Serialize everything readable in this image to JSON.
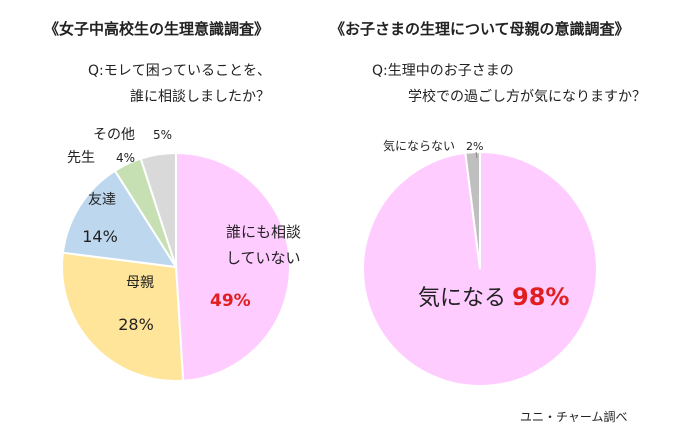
{
  "left_chart": {
    "title": "《女子中高校生の生理意識調査》",
    "question_line1": "Q:モレて困っていることを、",
    "question_line2": "誰に相談しましたか？"
  },
  "right_chart": {
    "title": "《お子さまの生理について母親の意識調査》",
    "question_line1": "Q:生理中のお子さまの",
    "question_line2": "学校での過ごし方が気になりますか？"
  },
  "source": "ユニ・チャーム調べ",
  "chart_data": [
    {
      "type": "pie",
      "title": "《女子中高校生の生理意識調査》",
      "slices": [
        {
          "label": "誰にも相談していない",
          "label_lines": [
            "誰にも相談",
            "していない"
          ],
          "value": 49,
          "value_text": "49%",
          "color": "#ffccff",
          "value_color": "#e02020"
        },
        {
          "label": "母親",
          "label_lines": [
            "母親"
          ],
          "value": 28,
          "value_text": "28%",
          "color": "#ffe599",
          "value_color": "#222222"
        },
        {
          "label": "友達",
          "label_lines": [
            "友達"
          ],
          "value": 14,
          "value_text": "14%",
          "color": "#bdd7ee",
          "value_color": "#222222"
        },
        {
          "label": "先生",
          "label_lines": [
            "先生"
          ],
          "value": 4,
          "value_text": "4%",
          "color": "#c6e0b4",
          "value_color": "#222222"
        },
        {
          "label": "その他",
          "label_lines": [
            "その他"
          ],
          "value": 5,
          "value_text": "5%",
          "color": "#d9d9d9",
          "value_color": "#222222"
        }
      ]
    },
    {
      "type": "pie",
      "title": "《お子さまの生理について母親の意識調査》",
      "slices": [
        {
          "label": "気になる",
          "label_lines": [
            "気になる"
          ],
          "value": 98,
          "value_text": "98%",
          "color": "#ffccff",
          "value_color": "#e02020"
        },
        {
          "label": "気にならない",
          "label_lines": [
            "気にならない"
          ],
          "value": 2,
          "value_text": "2%",
          "color": "#bfbfbf",
          "value_color": "#222222"
        }
      ]
    }
  ]
}
